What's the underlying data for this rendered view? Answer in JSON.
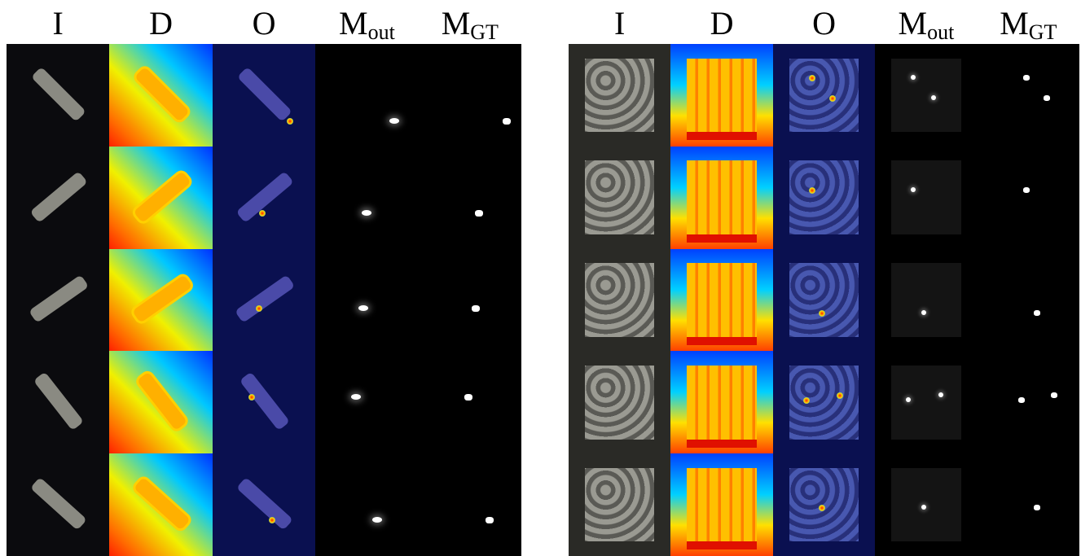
{
  "panels": [
    {
      "columns": [
        {
          "label": "I"
        },
        {
          "label": "D"
        },
        {
          "label": "O"
        },
        {
          "label": "M",
          "sub": "out"
        },
        {
          "label": "M",
          "sub": "GT"
        }
      ]
    },
    {
      "columns": [
        {
          "label": "I"
        },
        {
          "label": "D"
        },
        {
          "label": "O"
        },
        {
          "label": "M",
          "sub": "out"
        },
        {
          "label": "M",
          "sub": "GT"
        }
      ]
    }
  ]
}
